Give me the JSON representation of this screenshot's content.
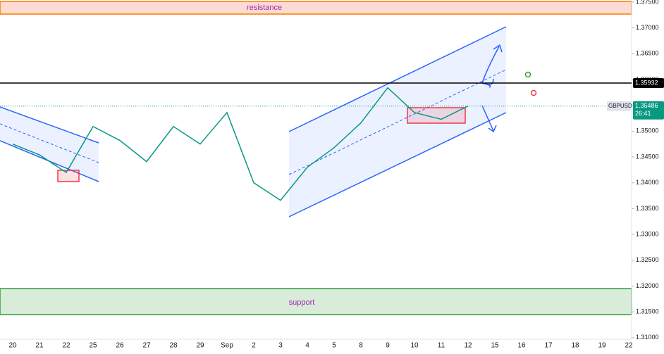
{
  "chart_data": {
    "type": "line",
    "symbol": "GBPUSD",
    "countdown": "26:41",
    "annotations": {
      "resistance": "resistance",
      "support": "support"
    },
    "marked_price": {
      "value": 1.35932,
      "label": "1.35932"
    },
    "current_price": {
      "value": 1.35486,
      "label": "1.35486"
    },
    "categories": [
      "20",
      "21",
      "22",
      "25",
      "26",
      "27",
      "28",
      "29",
      "Sep",
      "2",
      "3",
      "4",
      "5",
      "8",
      "9",
      "10",
      "11",
      "12",
      "15",
      "16",
      "17",
      "18",
      "19",
      "22"
    ],
    "series": [
      {
        "name": "GBPUSD",
        "color": "#089981",
        "values": [
          1.3475,
          1.3454,
          1.342,
          1.3509,
          1.3482,
          1.3441,
          1.3509,
          1.3475,
          1.3536,
          1.34,
          1.3366,
          1.343,
          1.3468,
          1.3516,
          1.3584,
          1.3536,
          1.3523,
          1.35486,
          null,
          null,
          null,
          null,
          null,
          null
        ]
      }
    ],
    "ylim": [
      1.3097,
      1.3754
    ],
    "yticks": [
      {
        "value": 1.31,
        "label": "1.31000"
      },
      {
        "value": 1.315,
        "label": "1.31500"
      },
      {
        "value": 1.32,
        "label": "1.32000"
      },
      {
        "value": 1.325,
        "label": "1.32500"
      },
      {
        "value": 1.33,
        "label": "1.33000"
      },
      {
        "value": 1.335,
        "label": "1.33500"
      },
      {
        "value": 1.34,
        "label": "1.34000"
      },
      {
        "value": 1.345,
        "label": "1.34500"
      },
      {
        "value": 1.35,
        "label": "1.35000"
      },
      {
        "value": 1.355,
        "label": "1.35500"
      },
      {
        "value": 1.36,
        "label": "1.36000"
      },
      {
        "value": 1.365,
        "label": "1.36500"
      },
      {
        "value": 1.37,
        "label": "1.37000"
      },
      {
        "value": 1.375,
        "label": "1.37500"
      }
    ],
    "grid": false
  }
}
